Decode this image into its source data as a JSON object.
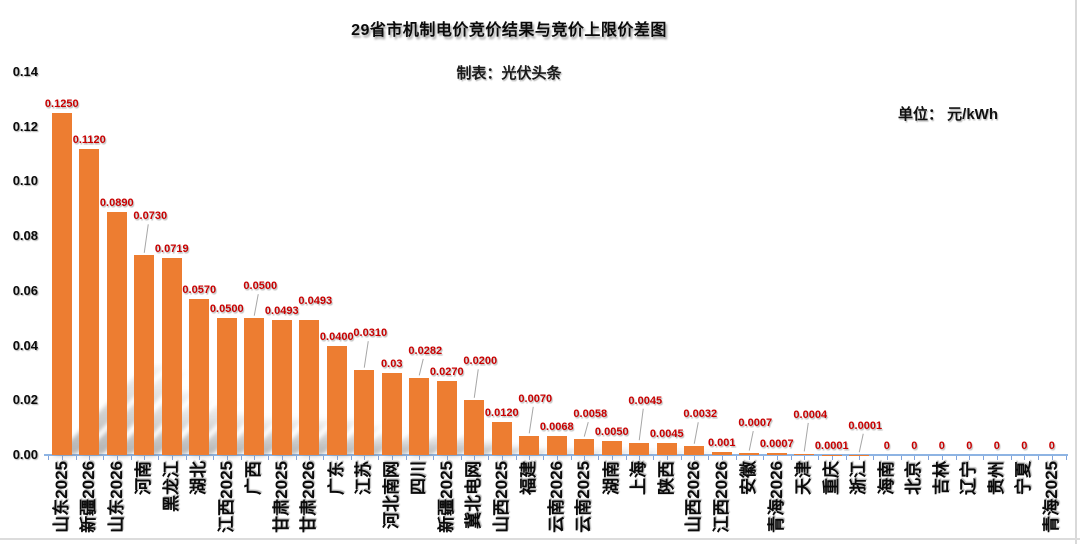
{
  "header": {
    "title": "29省市机制电价竞价结果与竞价上限价差图",
    "subtitle": "制表：光伏头条",
    "unit_label": "单位：  元/kWh"
  },
  "chart_data": {
    "type": "bar",
    "title": "29省市机制电价竞价结果与竞价上限价差图",
    "subtitle": "制表：光伏头条",
    "unit": "元/kWh",
    "xlabel": "",
    "ylabel": "",
    "ylim": [
      0,
      0.14
    ],
    "y_ticks": [
      "0.00",
      "0.02",
      "0.04",
      "0.06",
      "0.08",
      "0.10",
      "0.12",
      "0.14"
    ],
    "grid": false,
    "legend": "none",
    "bar_color": "#ED7D31",
    "value_label_color": "#C80000",
    "axis_color": "#8EB4E3",
    "categories": [
      "山东2025",
      "新疆2026",
      "山东2026",
      "河南",
      "黑龙江",
      "湖北",
      "江西2025",
      "广西",
      "甘肃2025",
      "甘肃2026",
      "广东",
      "江苏",
      "河北南网",
      "四川",
      "新疆2025",
      "冀北电网",
      "山西2025",
      "福建",
      "云南2026",
      "云南2025",
      "湖南",
      "上海",
      "陕西",
      "山西2026",
      "江西2026",
      "安徽",
      "青海2026",
      "天津",
      "重庆",
      "浙江",
      "海南",
      "北京",
      "吉林",
      "辽宁",
      "贵州",
      "宁夏",
      "青海2025"
    ],
    "values": [
      0.125,
      0.112,
      0.089,
      0.073,
      0.0719,
      0.057,
      0.05,
      0.05,
      0.0493,
      0.0493,
      0.04,
      0.031,
      0.03,
      0.0282,
      0.027,
      0.02,
      0.012,
      0.007,
      0.0068,
      0.0058,
      0.005,
      0.0045,
      0.0045,
      0.0032,
      0.001,
      0.0007,
      0.0007,
      0.0004,
      0.0001,
      0.0001,
      0,
      0,
      0,
      0,
      0,
      0,
      0
    ],
    "value_labels": [
      "0.1250",
      "0.1120",
      "0.0890",
      "0.0730",
      "0.0719",
      "0.0570",
      "0.0500",
      "0.0500",
      "0.0493",
      "0.0493",
      "0.0400",
      "0.0310",
      "0.03",
      "0.0282",
      "0.0270",
      "0.0200",
      "0.0120",
      "0.0070",
      "0.0068",
      "0.0058",
      "0.0050",
      "0.0045",
      "0.0045",
      "0.0032",
      "0.001",
      "0.0007",
      "0.0007",
      "0.0004",
      "0.0001",
      "0.0001",
      "0",
      "0",
      "0",
      "0",
      "0",
      "0",
      "0"
    ]
  }
}
